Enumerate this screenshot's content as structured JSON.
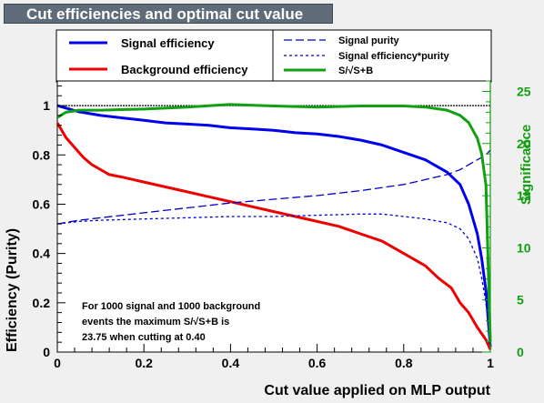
{
  "title": "Cut efficiencies and optimal cut value",
  "chart_data": {
    "type": "line",
    "xlabel": "Cut value applied on MLP output",
    "ylabel": "Efficiency (Purity)",
    "y2label": "Significance",
    "xlim": [
      0,
      1
    ],
    "ylim": [
      0,
      1.1
    ],
    "y2lim": [
      0,
      26
    ],
    "x_ticks": [
      "0",
      "0.2",
      "0.4",
      "0.6",
      "0.8",
      "1"
    ],
    "y_ticks": [
      "0",
      "0.2",
      "0.4",
      "0.6",
      "0.8",
      "1"
    ],
    "y2_ticks": [
      "0",
      "5",
      "10",
      "15",
      "20",
      "25"
    ],
    "reference_line_y": 1.0,
    "legend": [
      {
        "label": "Signal efficiency",
        "color": "#0000ee",
        "style": "solid",
        "width": 3
      },
      {
        "label": "Background efficiency",
        "color": "#ee0000",
        "style": "solid",
        "width": 3
      },
      {
        "label": "Signal purity",
        "color": "#0000cc",
        "style": "dashed",
        "width": 1.3
      },
      {
        "label": "Signal efficiency*purity",
        "color": "#0000cc",
        "style": "dotted",
        "width": 1.3
      },
      {
        "label": "S/√S+B",
        "color": "#10a010",
        "style": "solid",
        "width": 3
      }
    ],
    "series": [
      {
        "name": "Signal efficiency",
        "axis": "left",
        "x": [
          0,
          0.02,
          0.05,
          0.1,
          0.15,
          0.2,
          0.25,
          0.3,
          0.35,
          0.4,
          0.45,
          0.5,
          0.55,
          0.6,
          0.65,
          0.7,
          0.75,
          0.8,
          0.85,
          0.9,
          0.93,
          0.95,
          0.97,
          0.98,
          0.99,
          1.0
        ],
        "y": [
          1.0,
          0.99,
          0.975,
          0.96,
          0.95,
          0.94,
          0.93,
          0.925,
          0.92,
          0.91,
          0.905,
          0.9,
          0.89,
          0.885,
          0.875,
          0.86,
          0.84,
          0.81,
          0.78,
          0.73,
          0.68,
          0.6,
          0.48,
          0.38,
          0.25,
          0.02
        ]
      },
      {
        "name": "Background efficiency",
        "axis": "left",
        "x": [
          0,
          0.01,
          0.02,
          0.04,
          0.06,
          0.08,
          0.1,
          0.12,
          0.15,
          0.2,
          0.25,
          0.3,
          0.35,
          0.4,
          0.45,
          0.5,
          0.55,
          0.6,
          0.65,
          0.7,
          0.75,
          0.8,
          0.85,
          0.88,
          0.91,
          0.93,
          0.95,
          0.97,
          0.99,
          1.0
        ],
        "y": [
          0.93,
          0.9,
          0.87,
          0.83,
          0.79,
          0.76,
          0.74,
          0.72,
          0.71,
          0.69,
          0.67,
          0.65,
          0.63,
          0.61,
          0.59,
          0.57,
          0.55,
          0.53,
          0.51,
          0.48,
          0.45,
          0.4,
          0.35,
          0.3,
          0.26,
          0.2,
          0.16,
          0.1,
          0.05,
          0.01
        ]
      },
      {
        "name": "Signal purity",
        "axis": "left",
        "x": [
          0,
          0.05,
          0.1,
          0.2,
          0.3,
          0.4,
          0.5,
          0.6,
          0.7,
          0.8,
          0.85,
          0.9,
          0.93,
          0.95,
          0.97,
          0.99,
          1.0
        ],
        "y": [
          0.52,
          0.535,
          0.545,
          0.565,
          0.585,
          0.605,
          0.62,
          0.635,
          0.655,
          0.68,
          0.7,
          0.72,
          0.74,
          0.76,
          0.78,
          0.8,
          0.82
        ]
      },
      {
        "name": "Signal efficiency*purity",
        "axis": "left",
        "x": [
          0,
          0.05,
          0.1,
          0.2,
          0.3,
          0.4,
          0.5,
          0.6,
          0.7,
          0.75,
          0.8,
          0.85,
          0.9,
          0.93,
          0.95,
          0.97,
          0.98,
          0.99,
          1.0
        ],
        "y": [
          0.52,
          0.53,
          0.535,
          0.54,
          0.545,
          0.55,
          0.55,
          0.555,
          0.56,
          0.56,
          0.55,
          0.54,
          0.525,
          0.5,
          0.46,
          0.38,
          0.3,
          0.2,
          0.02
        ]
      },
      {
        "name": "S/√S+B",
        "axis": "right",
        "x": [
          0,
          0.02,
          0.05,
          0.1,
          0.2,
          0.3,
          0.4,
          0.5,
          0.6,
          0.7,
          0.8,
          0.85,
          0.9,
          0.93,
          0.95,
          0.97,
          0.98,
          0.99,
          1.0
        ],
        "y": [
          22.5,
          23.0,
          23.2,
          23.2,
          23.3,
          23.5,
          23.75,
          23.6,
          23.5,
          23.6,
          23.6,
          23.5,
          23.2,
          22.7,
          22.0,
          20.5,
          19.0,
          16.0,
          1.0
        ]
      }
    ],
    "annotation": [
      "For 1000 signal and 1000 background",
      "events the maximum S/√S+B is",
      "23.75 when cutting at  0.40"
    ]
  }
}
